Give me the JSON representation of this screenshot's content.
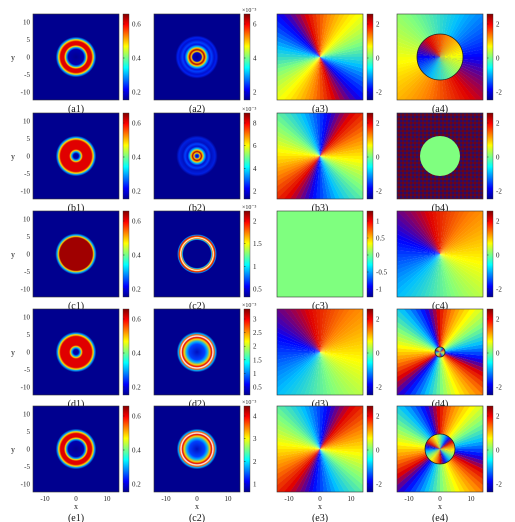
{
  "figure": {
    "axis_labels": {
      "x": "x",
      "y": "y"
    },
    "y_ticks": [
      "10",
      "5",
      "0",
      "-5",
      "-10"
    ],
    "x_ticks": [
      "-10",
      "0",
      "10"
    ],
    "rows": [
      {
        "panels": [
          {
            "label": "(a1)",
            "pattern": "ring",
            "colorbar": {
              "exp": "",
              "ticks": [
                "0.6",
                "0.4",
                "0.2"
              ]
            }
          },
          {
            "label": "(a2)",
            "pattern": "ring-multi",
            "colorbar": {
              "exp": "×10⁻³",
              "ticks": [
                "6",
                "4",
                "2"
              ]
            }
          },
          {
            "label": "(a3)",
            "pattern": "phase-4",
            "colorbar": {
              "exp": "",
              "ticks": [
                "2",
                "0",
                "-2"
              ]
            }
          },
          {
            "label": "(a4)",
            "pattern": "phase-hole",
            "colorbar": {
              "exp": "",
              "ticks": [
                "2",
                "0",
                "-2"
              ]
            }
          }
        ]
      },
      {
        "panels": [
          {
            "label": "(b1)",
            "pattern": "ring-spot",
            "colorbar": {
              "exp": "",
              "ticks": [
                "0.6",
                "0.4",
                "0.2"
              ]
            }
          },
          {
            "label": "(b2)",
            "pattern": "spot-multi",
            "colorbar": {
              "exp": "×10⁻³",
              "ticks": [
                "8",
                "6",
                "4",
                "2"
              ]
            }
          },
          {
            "label": "(b3)",
            "pattern": "phase-2",
            "colorbar": {
              "exp": "",
              "ticks": [
                "2",
                "0",
                "-2"
              ]
            }
          },
          {
            "label": "(b4)",
            "pattern": "noise-disk",
            "colorbar": {
              "exp": "",
              "ticks": [
                "2",
                "0",
                "-2"
              ]
            }
          }
        ]
      },
      {
        "panels": [
          {
            "label": "(c1)",
            "pattern": "disk",
            "colorbar": {
              "exp": "",
              "ticks": [
                "0.6",
                "0.4",
                "0.2"
              ]
            }
          },
          {
            "label": "(c2)",
            "pattern": "thin-ring",
            "colorbar": {
              "exp": "×10⁻³",
              "ticks": [
                "2",
                "1.5",
                "1",
                "0.5"
              ]
            }
          },
          {
            "label": "(c3)",
            "pattern": "uniform",
            "colorbar": {
              "exp": "",
              "ticks": [
                "1",
                "0.5",
                "0",
                "-0.5",
                "-1"
              ]
            }
          },
          {
            "label": "(c4)",
            "pattern": "phase-1",
            "colorbar": {
              "exp": "",
              "ticks": [
                "2",
                "0",
                "-2"
              ]
            }
          }
        ]
      },
      {
        "panels": [
          {
            "label": "(d1)",
            "pattern": "ring-spot",
            "colorbar": {
              "exp": "",
              "ticks": [
                "0.6",
                "0.4",
                "0.2"
              ]
            }
          },
          {
            "label": "(d2)",
            "pattern": "ring-blue",
            "colorbar": {
              "exp": "×10⁻³",
              "ticks": [
                "3",
                "2.5",
                "2",
                "1.5",
                "1",
                "0.5"
              ]
            }
          },
          {
            "label": "(d3)",
            "pattern": "phase-1",
            "colorbar": {
              "exp": "",
              "ticks": [
                "2",
                "0",
                "-2"
              ]
            }
          },
          {
            "label": "(d4)",
            "pattern": "phase-4c",
            "colorbar": {
              "exp": "",
              "ticks": [
                "2",
                "0",
                "-2"
              ]
            }
          }
        ]
      },
      {
        "panels": [
          {
            "label": "(e1)",
            "pattern": "ring",
            "colorbar": {
              "exp": "",
              "ticks": [
                "0.6",
                "0.4",
                "0.2"
              ]
            }
          },
          {
            "label": "(c2)",
            "pattern": "ring-blue",
            "colorbar": {
              "exp": "×10⁻³",
              "ticks": [
                "4",
                "3",
                "2",
                "1"
              ]
            }
          },
          {
            "label": "(e3)",
            "pattern": "phase-2",
            "colorbar": {
              "exp": "",
              "ticks": [
                "2",
                "0",
                "-2"
              ]
            }
          },
          {
            "label": "(e4)",
            "pattern": "phase-6c",
            "colorbar": {
              "exp": "",
              "ticks": [
                "2",
                "0",
                "-2"
              ]
            }
          }
        ]
      }
    ]
  }
}
